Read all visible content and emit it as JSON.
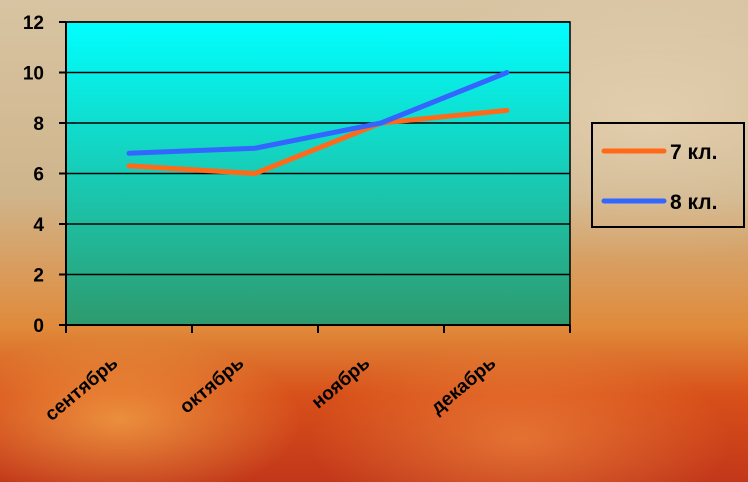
{
  "chart_data": {
    "type": "line",
    "categories": [
      "сентябрь",
      "октябрь",
      "ноябрь",
      "декабрь"
    ],
    "series": [
      {
        "name": "7 кл.",
        "values": [
          6.3,
          6.0,
          8.0,
          8.5
        ],
        "color": "#ff6a1a"
      },
      {
        "name": "8 кл.",
        "values": [
          6.8,
          7.0,
          8.0,
          10.0
        ],
        "color": "#3366ff"
      }
    ],
    "ylim": [
      0,
      12
    ],
    "yticks": [
      0,
      2,
      4,
      6,
      8,
      10,
      12
    ],
    "grid": true,
    "legend": "right",
    "plot_background": [
      "#00ffff",
      "#2e9a6e"
    ]
  }
}
